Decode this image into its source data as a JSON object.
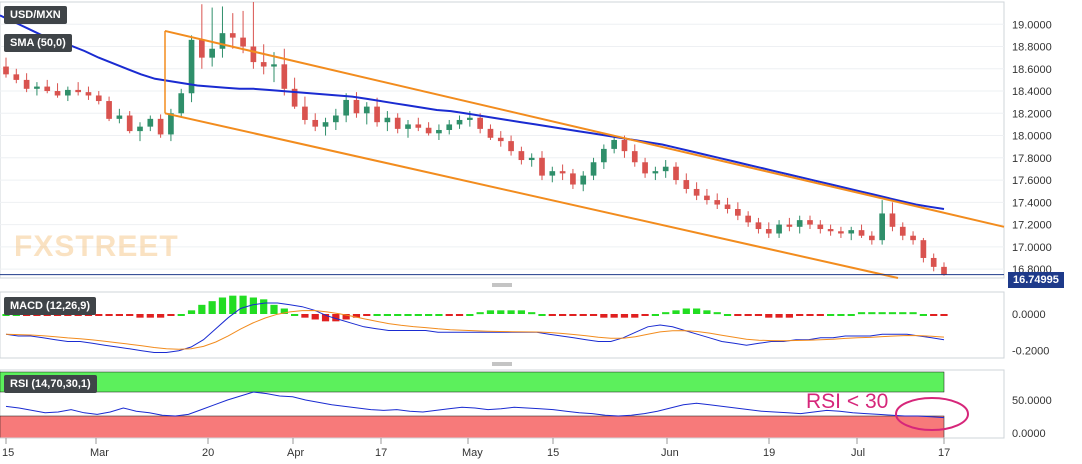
{
  "legend": {
    "symbol": "USD/MXN",
    "sma_label": "SMA (50,0)",
    "macd_label": "MACD (12,26,9)",
    "rsi_label": "RSI (14,70,30,1)"
  },
  "watermark": "FXSTREET",
  "last_price_label": "16.74995",
  "annotation": "RSI < 30",
  "colors": {
    "bull": "#2f8f6a",
    "bear": "#d9534f",
    "sma": "#1a2bd1",
    "channel": "#f28c1e",
    "macd_line": "#1a2bd1",
    "signal_line": "#f28c1e",
    "hist_pos": "#22dd22",
    "hist_neg": "#e02020",
    "rsi_line": "#1a2bd1",
    "overbought": "#5cf05c",
    "oversold": "#f77a7a",
    "annotation": "#d6267a"
  },
  "chart_data": [
    {
      "type": "candlestick",
      "title": "USD/MXN",
      "yticks": [
        "19.0000",
        "18.8000",
        "18.6000",
        "18.4000",
        "18.2000",
        "18.0000",
        "17.8000",
        "17.6000",
        "17.4000",
        "17.2000",
        "17.0000",
        "16.8000"
      ],
      "ylim": [
        16.72,
        19.2
      ],
      "xticks": [
        "15",
        "Mar",
        "20",
        "Apr",
        "17",
        "May",
        "15",
        "Jun",
        "19",
        "Jul",
        "17"
      ],
      "last_price": 16.74995,
      "candles": [
        [
          18.62,
          18.7,
          18.52,
          18.55
        ],
        [
          18.55,
          18.6,
          18.47,
          18.5
        ],
        [
          18.5,
          18.56,
          18.39,
          18.42
        ],
        [
          18.42,
          18.48,
          18.36,
          18.44
        ],
        [
          18.44,
          18.5,
          18.38,
          18.4
        ],
        [
          18.4,
          18.47,
          18.34,
          18.36
        ],
        [
          18.36,
          18.44,
          18.31,
          18.41
        ],
        [
          18.41,
          18.48,
          18.36,
          18.39
        ],
        [
          18.39,
          18.44,
          18.32,
          18.36
        ],
        [
          18.36,
          18.4,
          18.28,
          18.31
        ],
        [
          18.31,
          18.35,
          18.13,
          18.15
        ],
        [
          18.15,
          18.24,
          18.11,
          18.18
        ],
        [
          18.18,
          18.22,
          18.02,
          18.04
        ],
        [
          18.04,
          18.12,
          17.95,
          18.08
        ],
        [
          18.08,
          18.18,
          18.04,
          18.15
        ],
        [
          18.15,
          18.19,
          17.98,
          18.01
        ],
        [
          18.01,
          18.24,
          17.95,
          18.2
        ],
        [
          18.2,
          18.42,
          18.16,
          18.38
        ],
        [
          18.38,
          18.9,
          18.3,
          18.86
        ],
        [
          18.86,
          19.18,
          18.6,
          18.7
        ],
        [
          18.7,
          19.15,
          18.62,
          18.78
        ],
        [
          18.78,
          19.16,
          18.7,
          18.92
        ],
        [
          18.92,
          19.1,
          18.78,
          18.88
        ],
        [
          18.88,
          19.12,
          18.74,
          18.8
        ],
        [
          18.8,
          19.2,
          18.6,
          18.66
        ],
        [
          18.66,
          18.82,
          18.55,
          18.62
        ],
        [
          18.62,
          18.75,
          18.48,
          18.64
        ],
        [
          18.64,
          18.78,
          18.36,
          18.42
        ],
        [
          18.42,
          18.52,
          18.24,
          18.26
        ],
        [
          18.26,
          18.35,
          18.1,
          18.14
        ],
        [
          18.14,
          18.2,
          18.04,
          18.08
        ],
        [
          18.08,
          18.16,
          18.0,
          18.12
        ],
        [
          18.12,
          18.24,
          18.05,
          18.18
        ],
        [
          18.18,
          18.38,
          18.12,
          18.32
        ],
        [
          18.32,
          18.39,
          18.16,
          18.2
        ],
        [
          18.2,
          18.3,
          18.1,
          18.26
        ],
        [
          18.26,
          18.34,
          18.08,
          18.12
        ],
        [
          18.12,
          18.22,
          18.04,
          18.16
        ],
        [
          18.16,
          18.2,
          18.02,
          18.06
        ],
        [
          18.06,
          18.14,
          17.98,
          18.1
        ],
        [
          18.1,
          18.16,
          18.04,
          18.07
        ],
        [
          18.07,
          18.12,
          18.0,
          18.02
        ],
        [
          18.02,
          18.1,
          17.96,
          18.05
        ],
        [
          18.05,
          18.14,
          18.01,
          18.1
        ],
        [
          18.1,
          18.18,
          18.06,
          18.14
        ],
        [
          18.14,
          18.22,
          18.08,
          18.16
        ],
        [
          18.16,
          18.2,
          18.02,
          18.06
        ],
        [
          18.06,
          18.1,
          17.96,
          17.98
        ],
        [
          17.98,
          18.04,
          17.9,
          17.95
        ],
        [
          17.95,
          18.0,
          17.82,
          17.86
        ],
        [
          17.86,
          17.9,
          17.74,
          17.78
        ],
        [
          17.78,
          17.84,
          17.72,
          17.8
        ],
        [
          17.8,
          17.86,
          17.6,
          17.64
        ],
        [
          17.64,
          17.72,
          17.58,
          17.68
        ],
        [
          17.68,
          17.74,
          17.6,
          17.66
        ],
        [
          17.66,
          17.7,
          17.52,
          17.56
        ],
        [
          17.56,
          17.68,
          17.5,
          17.64
        ],
        [
          17.64,
          17.8,
          17.6,
          17.76
        ],
        [
          17.76,
          17.92,
          17.7,
          17.88
        ],
        [
          17.88,
          18.0,
          17.84,
          17.96
        ],
        [
          17.96,
          18.0,
          17.8,
          17.86
        ],
        [
          17.86,
          17.92,
          17.72,
          17.76
        ],
        [
          17.76,
          17.8,
          17.62,
          17.66
        ],
        [
          17.66,
          17.72,
          17.6,
          17.68
        ],
        [
          17.68,
          17.78,
          17.62,
          17.72
        ],
        [
          17.72,
          17.76,
          17.56,
          17.6
        ],
        [
          17.6,
          17.66,
          17.48,
          17.52
        ],
        [
          17.52,
          17.58,
          17.42,
          17.46
        ],
        [
          17.46,
          17.52,
          17.38,
          17.42
        ],
        [
          17.42,
          17.48,
          17.34,
          17.38
        ],
        [
          17.38,
          17.44,
          17.3,
          17.34
        ],
        [
          17.34,
          17.4,
          17.24,
          17.28
        ],
        [
          17.28,
          17.32,
          17.18,
          17.22
        ],
        [
          17.22,
          17.26,
          17.12,
          17.16
        ],
        [
          17.16,
          17.22,
          17.08,
          17.12
        ],
        [
          17.12,
          17.24,
          17.08,
          17.2
        ],
        [
          17.2,
          17.26,
          17.14,
          17.18
        ],
        [
          17.18,
          17.28,
          17.12,
          17.24
        ],
        [
          17.24,
          17.28,
          17.16,
          17.2
        ],
        [
          17.2,
          17.24,
          17.12,
          17.16
        ],
        [
          17.16,
          17.2,
          17.1,
          17.14
        ],
        [
          17.14,
          17.18,
          17.08,
          17.12
        ],
        [
          17.12,
          17.18,
          17.06,
          17.15
        ],
        [
          17.15,
          17.2,
          17.08,
          17.1
        ],
        [
          17.1,
          17.14,
          17.02,
          17.06
        ],
        [
          17.06,
          17.42,
          17.02,
          17.3
        ],
        [
          17.3,
          17.4,
          17.14,
          17.18
        ],
        [
          17.18,
          17.22,
          17.06,
          17.1
        ],
        [
          17.1,
          17.14,
          17.02,
          17.06
        ],
        [
          17.06,
          17.08,
          16.86,
          16.9
        ],
        [
          16.9,
          16.94,
          16.78,
          16.82
        ],
        [
          16.82,
          16.86,
          16.74,
          16.75
        ]
      ],
      "sma": [
        19.08,
        19.02,
        18.96,
        18.9,
        18.85,
        18.81,
        18.76,
        18.7,
        18.65,
        18.6,
        18.55,
        18.51,
        18.49,
        18.47,
        18.45,
        18.44,
        18.43,
        18.42,
        18.42,
        18.41,
        18.4,
        18.39,
        18.38,
        18.37,
        18.36,
        18.35,
        18.33,
        18.31,
        18.29,
        18.27,
        18.25,
        18.23,
        18.22,
        18.2,
        18.18,
        18.16,
        18.14,
        18.12,
        18.1,
        18.08,
        18.06,
        18.04,
        18.02,
        18.0,
        17.98,
        17.96,
        17.94,
        17.92,
        17.89,
        17.86,
        17.83,
        17.8,
        17.77,
        17.74,
        17.71,
        17.68,
        17.65,
        17.62,
        17.59,
        17.56,
        17.53,
        17.5,
        17.47,
        17.44,
        17.41,
        17.38,
        17.36,
        17.34
      ],
      "channel_upper": {
        "x": [
          "Mar 10",
          "Jul 17"
        ],
        "y": [
          18.94,
          17.18
        ]
      },
      "channel_lower": {
        "x": [
          "Mar 10",
          "Jul 12"
        ],
        "y": [
          18.2,
          16.72
        ]
      }
    },
    {
      "type": "histogram+line",
      "title": "MACD (12,26,9)",
      "yticks": [
        "0.0000",
        "-0.2000"
      ],
      "ylim": [
        -0.24,
        0.12
      ],
      "histogram": [
        0.0,
        0.0,
        -0.01,
        -0.01,
        -0.01,
        -0.01,
        -0.01,
        -0.01,
        -0.01,
        -0.01,
        -0.01,
        -0.01,
        -0.01,
        -0.02,
        -0.02,
        -0.02,
        -0.01,
        0.0,
        0.02,
        0.05,
        0.07,
        0.09,
        0.1,
        0.1,
        0.09,
        0.08,
        0.05,
        0.03,
        0.0,
        -0.02,
        -0.03,
        -0.04,
        -0.04,
        -0.03,
        -0.02,
        -0.01,
        0.0,
        0.0,
        0.0,
        0.0,
        0.0,
        0.0,
        0.0,
        -0.01,
        -0.01,
        0.0,
        0.01,
        0.02,
        0.02,
        0.02,
        0.02,
        0.01,
        0.0,
        -0.01,
        -0.01,
        -0.01,
        -0.01,
        -0.01,
        -0.02,
        -0.02,
        -0.02,
        -0.02,
        -0.01,
        0.0,
        0.01,
        0.02,
        0.03,
        0.03,
        0.02,
        0.01,
        0.0,
        -0.01,
        -0.01,
        -0.01,
        -0.02,
        -0.02,
        -0.02,
        -0.01,
        -0.01,
        -0.01,
        0.0,
        0.0,
        0.0,
        0.01,
        0.01,
        0.01,
        0.01,
        0.01,
        0.01,
        0.0,
        -0.01,
        -0.01
      ],
      "macd": [
        -0.11,
        -0.12,
        -0.12,
        -0.13,
        -0.14,
        -0.15,
        -0.15,
        -0.16,
        -0.17,
        -0.18,
        -0.19,
        -0.2,
        -0.21,
        -0.21,
        -0.2,
        -0.18,
        -0.14,
        -0.08,
        -0.02,
        0.03,
        0.05,
        0.06,
        0.06,
        0.05,
        0.04,
        0.02,
        -0.01,
        -0.03,
        -0.05,
        -0.07,
        -0.08,
        -0.09,
        -0.09,
        -0.09,
        -0.09,
        -0.1,
        -0.1,
        -0.1,
        -0.1,
        -0.1,
        -0.1,
        -0.1,
        -0.1,
        -0.1,
        -0.11,
        -0.12,
        -0.13,
        -0.14,
        -0.15,
        -0.15,
        -0.13,
        -0.1,
        -0.07,
        -0.06,
        -0.07,
        -0.09,
        -0.11,
        -0.13,
        -0.15,
        -0.16,
        -0.17,
        -0.16,
        -0.15,
        -0.15,
        -0.14,
        -0.14,
        -0.13,
        -0.13,
        -0.12,
        -0.12,
        -0.12,
        -0.11,
        -0.11,
        -0.11,
        -0.12,
        -0.13,
        -0.14
      ]
    },
    {
      "type": "line",
      "title": "RSI (14,70,30,1)",
      "yticks": [
        "50.0000",
        "0.0000"
      ],
      "ylim": [
        0,
        100
      ],
      "overbought": 70,
      "oversold": 30,
      "rsi": [
        42,
        40,
        37,
        34,
        35,
        38,
        34,
        32,
        35,
        40,
        36,
        34,
        31,
        30,
        32,
        38,
        44,
        50,
        55,
        60,
        58,
        55,
        54,
        50,
        47,
        44,
        42,
        40,
        38,
        37,
        38,
        36,
        35,
        37,
        39,
        41,
        40,
        38,
        39,
        41,
        40,
        39,
        38,
        36,
        34,
        33,
        31,
        30,
        31,
        33,
        36,
        40,
        44,
        46,
        44,
        42,
        40,
        38,
        36,
        35,
        34,
        33,
        35,
        37,
        36,
        34,
        33,
        32,
        31,
        30,
        30,
        29,
        28
      ]
    }
  ]
}
